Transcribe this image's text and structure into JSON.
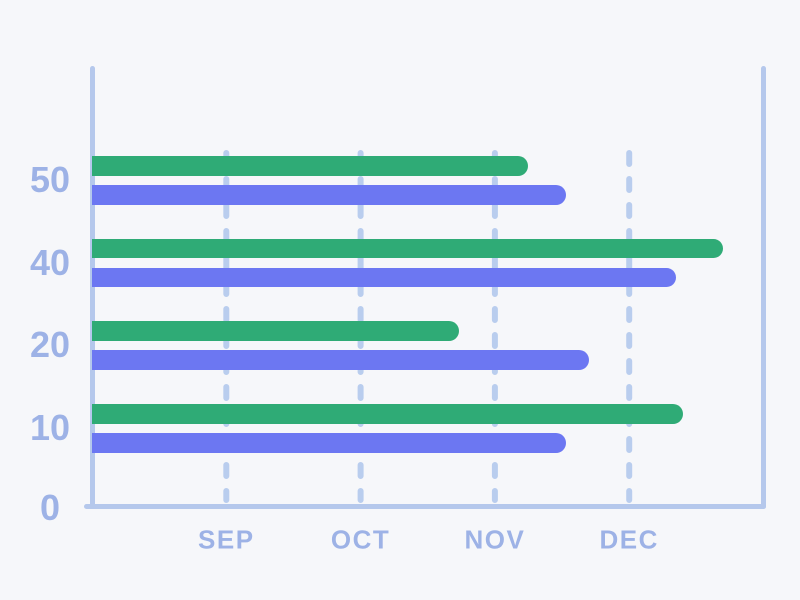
{
  "background_color": "#f6f7fa",
  "chart_data": {
    "type": "bar",
    "orientation": "horizontal",
    "title": "",
    "xlabel": "",
    "ylabel": "",
    "categories": [
      "50",
      "40",
      "20",
      "10"
    ],
    "series": [
      {
        "name": "green",
        "color": "#2fab76",
        "values": [
          3.25,
          4.7,
          2.73,
          4.4
        ]
      },
      {
        "name": "purple",
        "color": "#6c77f2",
        "values": [
          3.53,
          4.35,
          3.7,
          3.53
        ]
      }
    ],
    "x_ticks": [
      {
        "label": "SEP",
        "value": 1
      },
      {
        "label": "OCT",
        "value": 2
      },
      {
        "label": "NOV",
        "value": 3
      },
      {
        "label": "DEC",
        "value": 4
      }
    ],
    "xlim": [
      0,
      5
    ],
    "origin_label": "0",
    "grid": "vertical-dashed",
    "legend_position": "none",
    "axis_color": "#b5c8ec",
    "gridline_color": "#b9cdee",
    "tick_label_color": "#9db2e6"
  }
}
